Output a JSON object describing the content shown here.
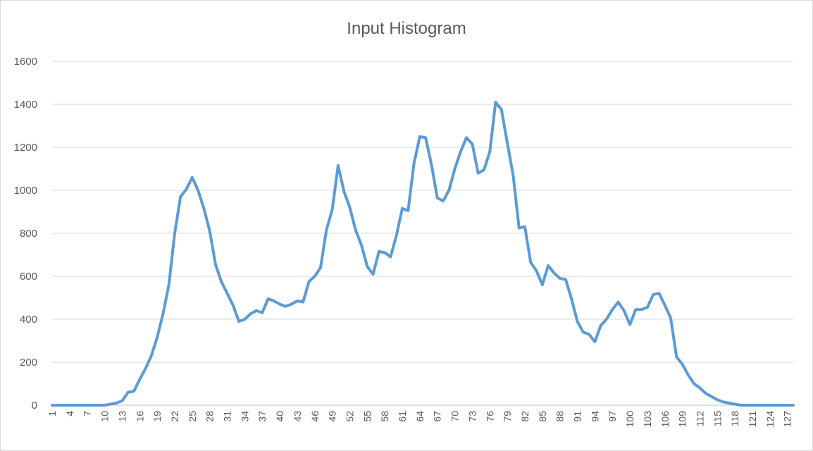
{
  "chart_data": {
    "type": "line",
    "title": "Input Histogram",
    "xlabel": "",
    "ylabel": "",
    "ylim": [
      0,
      1600
    ],
    "yticks": [
      0,
      200,
      400,
      600,
      800,
      1000,
      1200,
      1400,
      1600
    ],
    "x": [
      1,
      2,
      3,
      4,
      5,
      6,
      7,
      8,
      9,
      10,
      11,
      12,
      13,
      14,
      15,
      16,
      17,
      18,
      19,
      20,
      21,
      22,
      23,
      24,
      25,
      26,
      27,
      28,
      29,
      30,
      31,
      32,
      33,
      34,
      35,
      36,
      37,
      38,
      39,
      40,
      41,
      42,
      43,
      44,
      45,
      46,
      47,
      48,
      49,
      50,
      51,
      52,
      53,
      54,
      55,
      56,
      57,
      58,
      59,
      60,
      61,
      62,
      63,
      64,
      65,
      66,
      67,
      68,
      69,
      70,
      71,
      72,
      73,
      74,
      75,
      76,
      77,
      78,
      79,
      80,
      81,
      82,
      83,
      84,
      85,
      86,
      87,
      88,
      89,
      90,
      91,
      92,
      93,
      94,
      95,
      96,
      97,
      98,
      99,
      100,
      101,
      102,
      103,
      104,
      105,
      106,
      107,
      108,
      109,
      110,
      111,
      112,
      113,
      114,
      115,
      116,
      117,
      118,
      119,
      120,
      121,
      122,
      123,
      124,
      125,
      126,
      127,
      128
    ],
    "xtick_labels": [
      "1",
      "4",
      "7",
      "10",
      "13",
      "16",
      "19",
      "22",
      "25",
      "28",
      "31",
      "34",
      "37",
      "40",
      "43",
      "46",
      "49",
      "52",
      "55",
      "58",
      "61",
      "64",
      "67",
      "70",
      "73",
      "76",
      "79",
      "82",
      "85",
      "88",
      "91",
      "94",
      "97",
      "100",
      "103",
      "106",
      "109",
      "112",
      "115",
      "118",
      "121",
      "124",
      "127"
    ],
    "grid": true,
    "legend": "none",
    "series": [
      {
        "name": "",
        "color": "#5b9bd5",
        "values": [
          0,
          0,
          0,
          0,
          0,
          0,
          0,
          0,
          0,
          0,
          5,
          10,
          20,
          60,
          65,
          120,
          170,
          230,
          315,
          425,
          560,
          800,
          970,
          1005,
          1060,
          1000,
          915,
          810,
          655,
          575,
          520,
          465,
          390,
          400,
          425,
          440,
          430,
          495,
          485,
          470,
          460,
          470,
          485,
          480,
          575,
          600,
          640,
          815,
          910,
          1115,
          995,
          920,
          815,
          745,
          645,
          610,
          715,
          710,
          690,
          790,
          915,
          905,
          1125,
          1250,
          1245,
          1120,
          965,
          950,
          1000,
          1100,
          1180,
          1245,
          1215,
          1080,
          1095,
          1180,
          1410,
          1375,
          1220,
          1070,
          825,
          830,
          665,
          625,
          560,
          650,
          615,
          590,
          585,
          495,
          390,
          340,
          330,
          295,
          370,
          400,
          445,
          480,
          440,
          375,
          445,
          445,
          455,
          515,
          520,
          465,
          405,
          225,
          190,
          140,
          100,
          80,
          55,
          40,
          25,
          15,
          10,
          5,
          0,
          0,
          0,
          0,
          0,
          0,
          0,
          0,
          0,
          0
        ]
      }
    ]
  }
}
